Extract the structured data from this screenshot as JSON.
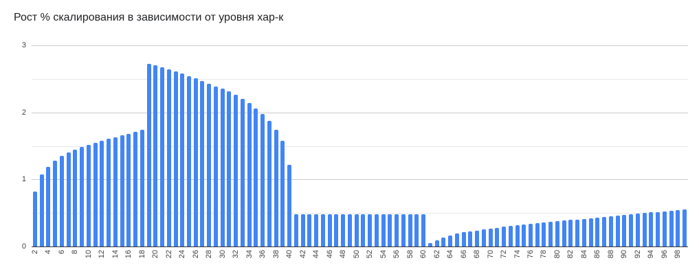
{
  "title": "Рост % скалирования в зависимости от уровня хар-к",
  "chart_data": {
    "type": "bar",
    "title": "Рост % скалирования в зависимости от уровня хар-к",
    "xlabel": "",
    "ylabel": "",
    "legend": false,
    "grid": true,
    "ylim": [
      0,
      3
    ],
    "y_ticks": [
      0,
      1,
      2,
      3
    ],
    "y_minor_step": 0.5,
    "x_tick_step": 2,
    "bar_color": "#4285f4",
    "axis_line_color": "#333333",
    "major_grid_color": "#cccccc",
    "minor_grid_color": "#e7e7e7",
    "tick_label_color": "#424242",
    "x": [
      2,
      3,
      4,
      5,
      6,
      7,
      8,
      9,
      10,
      11,
      12,
      13,
      14,
      15,
      16,
      17,
      18,
      19,
      20,
      21,
      22,
      23,
      24,
      25,
      26,
      27,
      28,
      29,
      30,
      31,
      32,
      33,
      34,
      35,
      36,
      37,
      38,
      39,
      40,
      41,
      42,
      43,
      44,
      45,
      46,
      47,
      48,
      49,
      50,
      51,
      52,
      53,
      54,
      55,
      56,
      57,
      58,
      59,
      60,
      61,
      62,
      63,
      64,
      65,
      66,
      67,
      68,
      69,
      70,
      71,
      72,
      73,
      74,
      75,
      76,
      77,
      78,
      79,
      80,
      81,
      82,
      83,
      84,
      85,
      86,
      87,
      88,
      89,
      90,
      91,
      92,
      93,
      94,
      95,
      96,
      97,
      98,
      99
    ],
    "values": [
      0.82,
      1.07,
      1.19,
      1.28,
      1.35,
      1.4,
      1.44,
      1.48,
      1.52,
      1.55,
      1.58,
      1.61,
      1.63,
      1.66,
      1.68,
      1.71,
      1.74,
      2.72,
      2.7,
      2.67,
      2.64,
      2.61,
      2.58,
      2.54,
      2.51,
      2.47,
      2.43,
      2.39,
      2.35,
      2.31,
      2.26,
      2.2,
      2.14,
      2.06,
      1.98,
      1.87,
      1.74,
      1.58,
      1.22,
      0.48,
      0.48,
      0.48,
      0.48,
      0.48,
      0.48,
      0.48,
      0.48,
      0.48,
      0.48,
      0.48,
      0.48,
      0.48,
      0.48,
      0.48,
      0.48,
      0.48,
      0.48,
      0.48,
      0.48,
      0.05,
      0.09,
      0.13,
      0.16,
      0.19,
      0.21,
      0.23,
      0.24,
      0.26,
      0.27,
      0.28,
      0.3,
      0.31,
      0.32,
      0.33,
      0.34,
      0.35,
      0.36,
      0.37,
      0.38,
      0.39,
      0.4,
      0.4,
      0.41,
      0.42,
      0.43,
      0.44,
      0.45,
      0.46,
      0.47,
      0.48,
      0.49,
      0.5,
      0.51,
      0.51,
      0.52,
      0.53,
      0.54,
      0.55
    ]
  }
}
